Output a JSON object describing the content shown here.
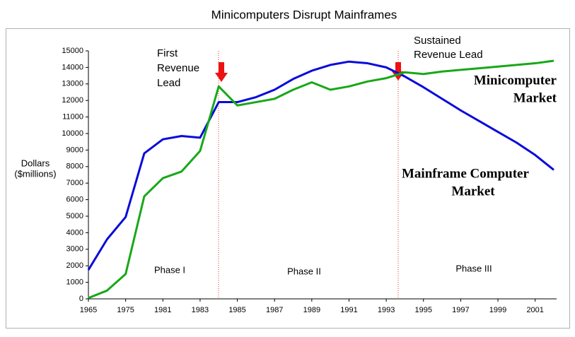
{
  "chart_data": {
    "type": "line",
    "title": "Minicomputers Disrupt Mainframes",
    "y_label": [
      "Dollars",
      "($millions)"
    ],
    "categories": [
      "1965",
      null,
      "1975",
      null,
      "1981",
      null,
      "1983",
      null,
      "1985",
      null,
      "1987",
      null,
      "1989",
      null,
      "1991",
      null,
      "1993",
      null,
      "1995",
      null,
      "1997",
      null,
      "1999",
      null,
      "2001",
      null
    ],
    "ylim": [
      0,
      15000
    ],
    "yticks": [
      0,
      1000,
      2000,
      3000,
      4000,
      5000,
      6000,
      7000,
      8000,
      9000,
      10000,
      11000,
      12000,
      13000,
      14000,
      15000
    ],
    "series": [
      {
        "label": [
          "Mainframe Computer",
          "Market"
        ],
        "color": "#0a0adc",
        "values": [
          1750,
          3600,
          4950,
          8800,
          9650,
          9850,
          9750,
          11900,
          11900,
          12200,
          12650,
          13300,
          13800,
          14150,
          14350,
          14250,
          14000,
          13450,
          12800,
          12100,
          11400,
          10750,
          10100,
          9450,
          8700,
          7800
        ]
      },
      {
        "label": [
          "Minicomputer",
          "Market"
        ],
        "color": "#18a818",
        "values": [
          50,
          500,
          1500,
          6200,
          7300,
          7700,
          8950,
          12850,
          11700,
          11900,
          12100,
          12650,
          13100,
          12650,
          12850,
          13150,
          13350,
          13700,
          13600,
          13750,
          13850,
          13950,
          14050,
          14150,
          14250,
          14400
        ]
      }
    ],
    "annotations": {
      "first_lead": [
        "First",
        "Revenue",
        "Lead"
      ],
      "sustained_lead": [
        "Sustained",
        "Revenue Lead"
      ],
      "phases": [
        "Phase I",
        "Phase II",
        "Phase III"
      ]
    }
  }
}
